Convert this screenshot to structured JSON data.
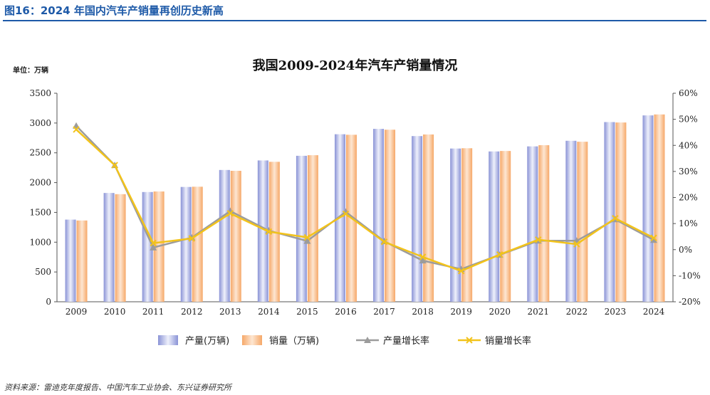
{
  "figure_title": "图16：2024 年国内汽车产销量再创历史新高",
  "source_note": "资料来源：雷迪克年度报告、中国汽车工业协会、东兴证券研究所",
  "chart_data": {
    "type": "bar+line",
    "title": "我国2009-2024年汽车产销量情况",
    "unit_label": "单位：万辆",
    "categories": [
      "2009",
      "2010",
      "2011",
      "2012",
      "2013",
      "2014",
      "2015",
      "2016",
      "2017",
      "2018",
      "2019",
      "2020",
      "2021",
      "2022",
      "2023",
      "2024"
    ],
    "y_left": {
      "min": 0,
      "max": 3500,
      "step": 500,
      "ticks": [
        "0",
        "500",
        "1000",
        "1500",
        "2000",
        "2500",
        "3000",
        "3500"
      ]
    },
    "y_right": {
      "min": -20,
      "max": 60,
      "step": 10,
      "ticks": [
        "-20%",
        "-10%",
        "0%",
        "10%",
        "20%",
        "30%",
        "40%",
        "50%",
        "60%"
      ]
    },
    "bar_series": [
      {
        "name": "产量(万辆)",
        "axis": "left",
        "color": "#8e96d8",
        "values": [
          1379,
          1826,
          1842,
          1927,
          2212,
          2372,
          2450,
          2812,
          2902,
          2781,
          2572,
          2523,
          2608,
          2702,
          3016,
          3128
        ]
      },
      {
        "name": "销量（万辆)",
        "axis": "right_placeholder_left",
        "color": "#f7b27e",
        "values": [
          1364,
          1806,
          1851,
          1931,
          2198,
          2349,
          2460,
          2803,
          2888,
          2808,
          2577,
          2531,
          2628,
          2686,
          3009,
          3144
        ]
      }
    ],
    "line_series": [
      {
        "name": "产量增长率",
        "axis": "right",
        "color": "#9c9c9c",
        "marker": "triangle",
        "values": [
          47.5,
          32.4,
          0.8,
          4.6,
          14.8,
          7.3,
          3.3,
          14.5,
          3.2,
          -4.2,
          -7.5,
          -2.0,
          3.4,
          3.4,
          11.6,
          3.7
        ]
      },
      {
        "name": "销量增长率",
        "axis": "right",
        "color": "#f2c31b",
        "marker": "x",
        "values": [
          46.1,
          32.4,
          2.5,
          4.3,
          13.9,
          6.9,
          4.7,
          13.7,
          3.0,
          -2.8,
          -8.2,
          -1.9,
          3.8,
          2.1,
          12.0,
          4.5
        ]
      }
    ],
    "legend_position": "bottom",
    "grid": false
  }
}
